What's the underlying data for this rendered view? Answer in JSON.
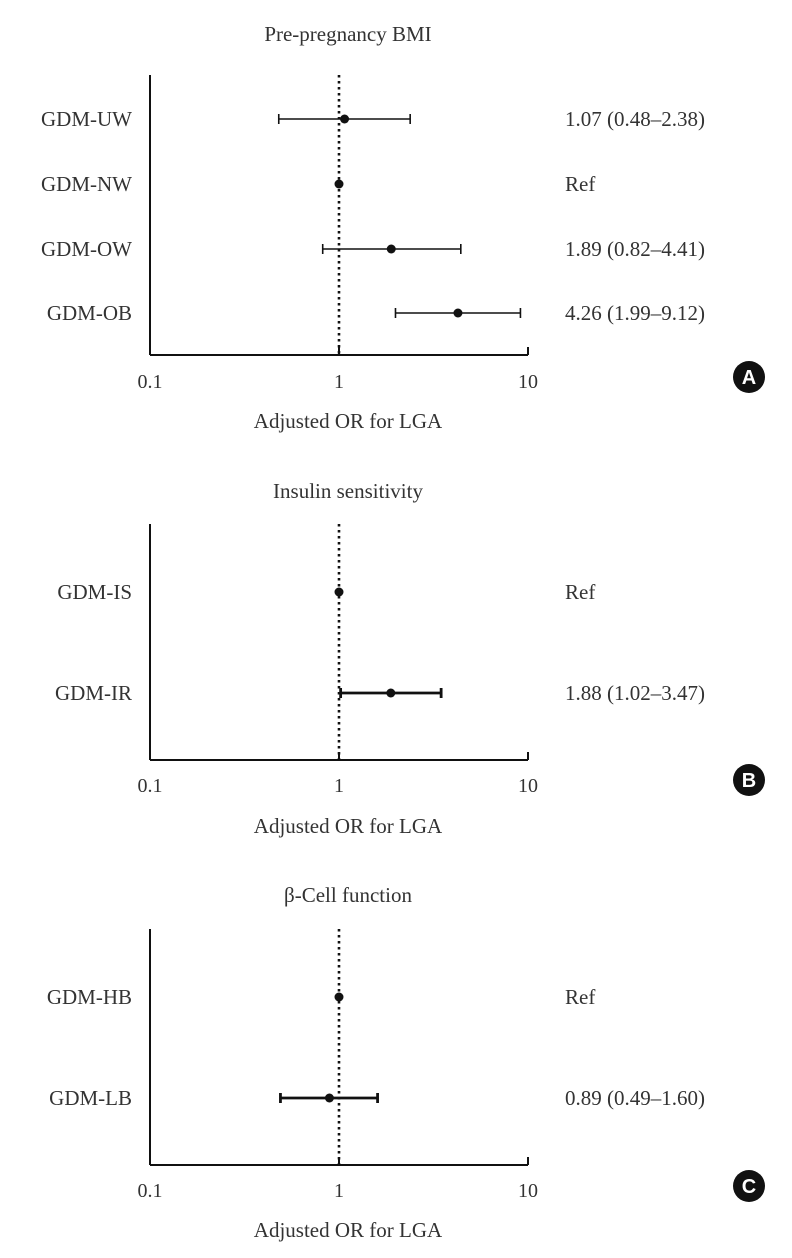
{
  "chart_data": [
    {
      "type": "forest",
      "panel_label": "A",
      "title": "Pre-pregnancy BMI",
      "xlabel": "Adjusted OR for LGA",
      "xscale": "log",
      "xlim": [
        0.1,
        10
      ],
      "xticks": [
        "0.1",
        "1",
        "10"
      ],
      "reference_line": 1,
      "rows": [
        {
          "label": "GDM-UW",
          "or": 1.07,
          "lo": 0.48,
          "hi": 2.38,
          "text": "1.07 (0.48–2.38)"
        },
        {
          "label": "GDM-NW",
          "or": 1,
          "lo": null,
          "hi": null,
          "text": "Ref"
        },
        {
          "label": "GDM-OW",
          "or": 1.89,
          "lo": 0.82,
          "hi": 4.41,
          "text": "1.89 (0.82–4.41)"
        },
        {
          "label": "GDM-OB",
          "or": 4.26,
          "lo": 1.99,
          "hi": 9.12,
          "text": "4.26 (1.99–9.12)"
        }
      ]
    },
    {
      "type": "forest",
      "panel_label": "B",
      "title": "Insulin sensitivity",
      "xlabel": "Adjusted OR for LGA",
      "xscale": "log",
      "xlim": [
        0.1,
        10
      ],
      "xticks": [
        "0.1",
        "1",
        "10"
      ],
      "reference_line": 1,
      "rows": [
        {
          "label": "GDM-IS",
          "or": 1,
          "lo": null,
          "hi": null,
          "text": "Ref"
        },
        {
          "label": "GDM-IR",
          "or": 1.88,
          "lo": 1.02,
          "hi": 3.47,
          "text": "1.88 (1.02–3.47)"
        }
      ]
    },
    {
      "type": "forest",
      "panel_label": "C",
      "title": "β-Cell function",
      "xlabel": "Adjusted OR for LGA",
      "xscale": "log",
      "xlim": [
        0.1,
        10
      ],
      "xticks": [
        "0.1",
        "1",
        "10"
      ],
      "reference_line": 1,
      "rows": [
        {
          "label": "GDM-HB",
          "or": 1,
          "lo": null,
          "hi": null,
          "text": "Ref"
        },
        {
          "label": "GDM-LB",
          "or": 0.89,
          "lo": 0.49,
          "hi": 1.6,
          "text": "0.89 (0.49–1.60)"
        }
      ]
    }
  ],
  "colors": {
    "text": "#333333",
    "ink": "#111111",
    "badge": "#111111",
    "badge_text": "#ffffff",
    "background": "#ffffff"
  }
}
